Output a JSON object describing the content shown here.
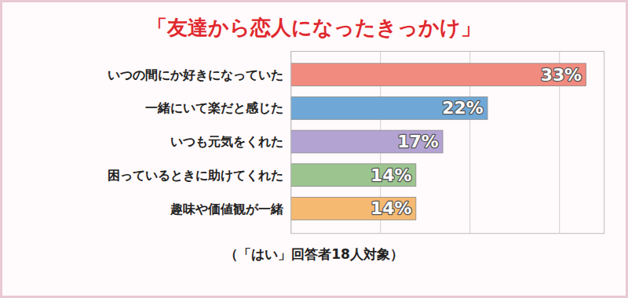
{
  "chart_data": {
    "type": "bar",
    "title": "「友達から恋人になったきっかけ」",
    "caption": "（「はい」回答者18人対象）",
    "orientation": "horizontal",
    "categories": [
      "いつの間にか好きになっていた",
      "一緒にいて楽だと感じた",
      "いつも元気をくれた",
      "困っているときに助けてくれた",
      "趣味や価値観が一緒"
    ],
    "values": [
      33,
      22,
      17,
      14,
      14
    ],
    "value_labels": [
      "33%",
      "22%",
      "17%",
      "14%",
      "14%"
    ],
    "colors": [
      "#f28b7f",
      "#6fa8d6",
      "#b3a3d3",
      "#9cc48f",
      "#f5b971"
    ],
    "xlim": [
      0,
      35
    ],
    "xticks": [
      0,
      10,
      20,
      30
    ],
    "grid": true,
    "data_labels": true,
    "tick_labels": "y"
  }
}
